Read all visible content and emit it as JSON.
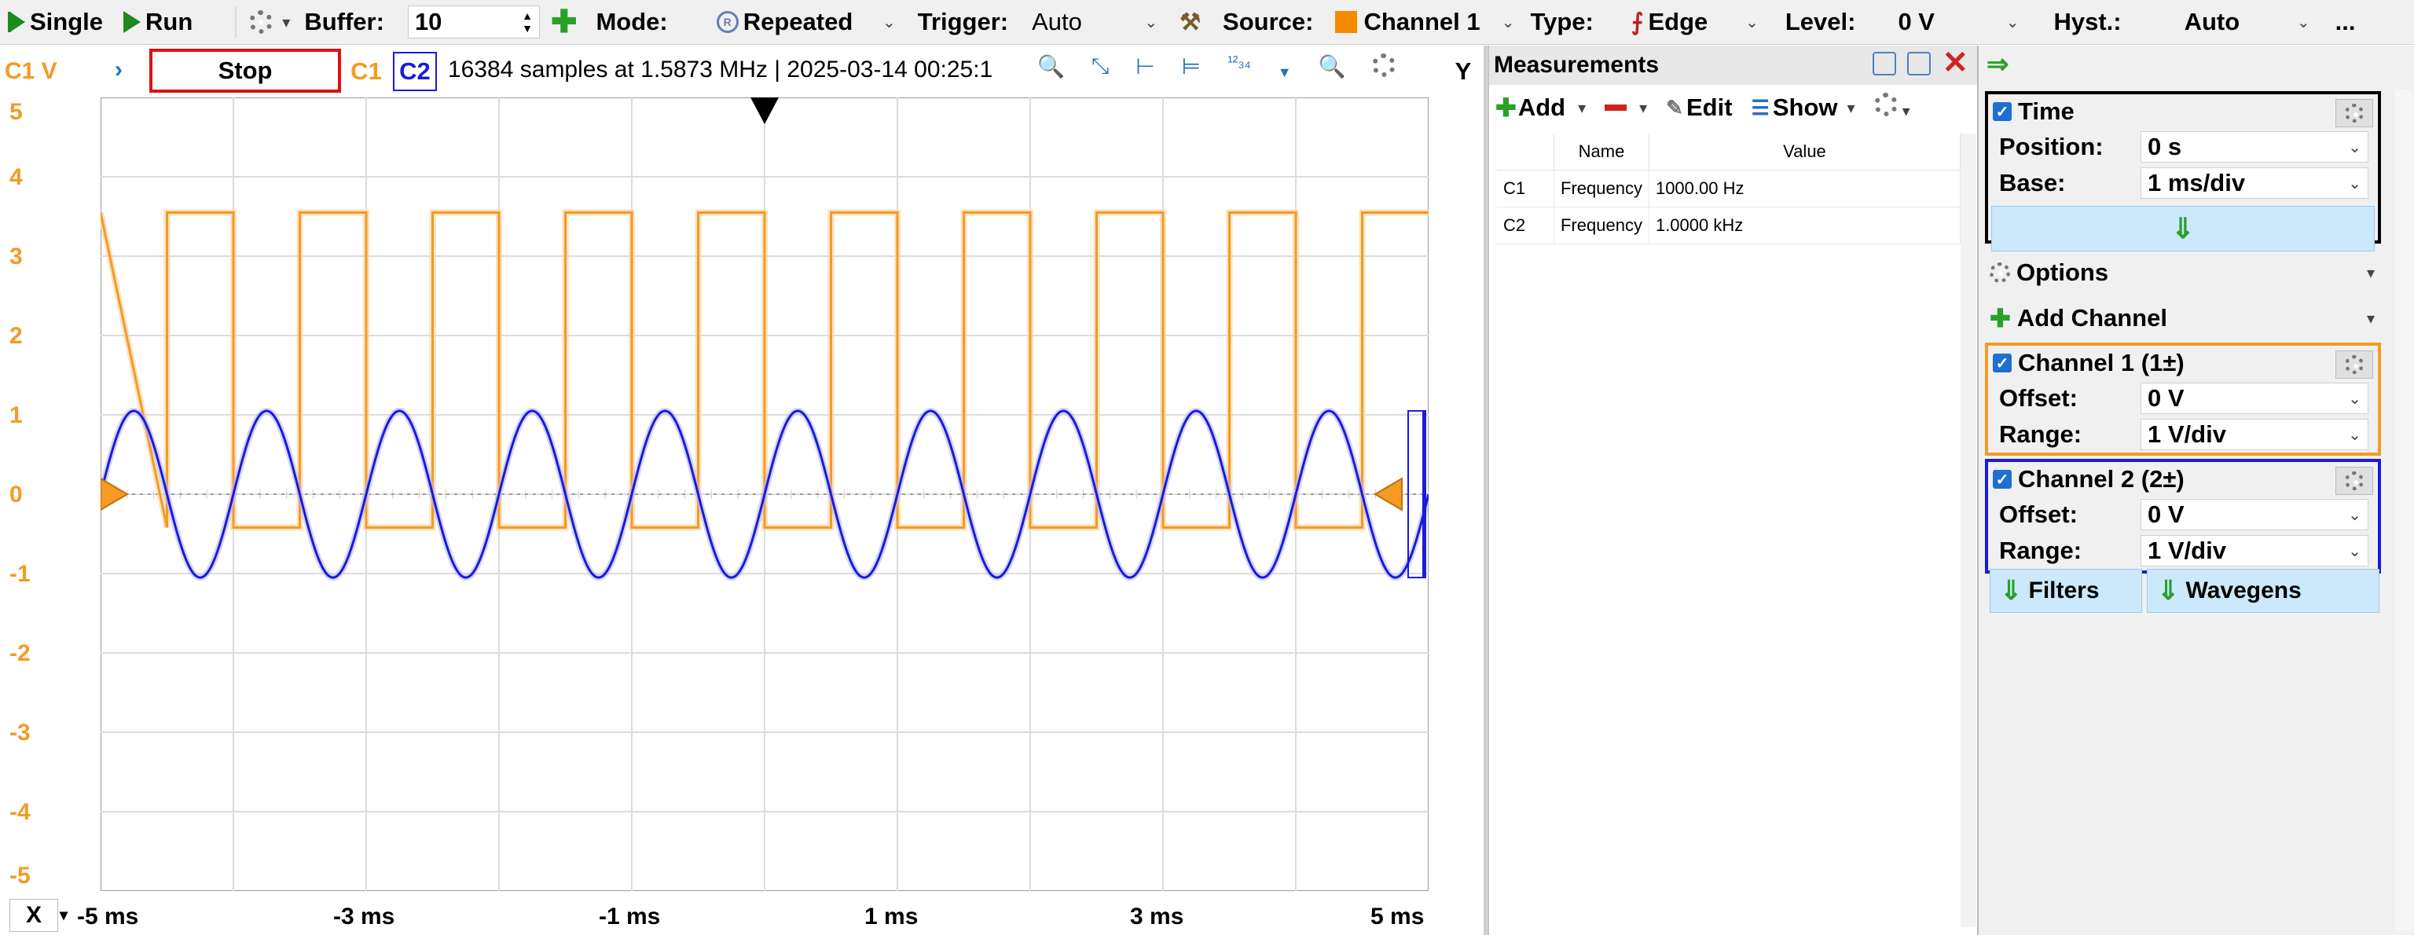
{
  "toolbar": {
    "single": "Single",
    "run": "Run",
    "buffer_label": "Buffer:",
    "buffer_value": "10",
    "mode_label": "Mode:",
    "mode_value": "Repeated",
    "trigger_label": "Trigger:",
    "trigger_value": "Auto",
    "source_label": "Source:",
    "source_value": "Channel 1",
    "type_label": "Type:",
    "type_value": "Edge",
    "level_label": "Level:",
    "level_value": "0 V",
    "hyst_label": "Hyst.:",
    "hyst_value": "Auto",
    "more": "..."
  },
  "scope": {
    "axis_title": "C1 V",
    "stop_label": "Stop",
    "c1": "C1",
    "c2": "C2",
    "status": "16384 samples at 1.5873 MHz  | 2025-03-14 00:25:1",
    "y_button": "Y",
    "y_ticks": [
      "5",
      "4",
      "3",
      "2",
      "1",
      "0",
      "-1",
      "-2",
      "-3",
      "-4",
      "-5"
    ],
    "x_button": "X",
    "x_ticks": [
      "-5 ms",
      "-3 ms",
      "-1 ms",
      "1 ms",
      "3 ms",
      "5 ms"
    ],
    "colors": {
      "c1": "#f59a23",
      "c2": "#1a1adb"
    }
  },
  "chart_data": {
    "type": "line",
    "x_unit": "ms",
    "xlim": [
      -5,
      5
    ],
    "ylim": [
      -5,
      5
    ],
    "grid": true,
    "trigger_level_v": 0,
    "series": [
      {
        "name": "C1",
        "shape": "square",
        "frequency_hz": 1000,
        "high_v": 3.55,
        "low_v": -0.42,
        "rising_edges_ms": [
          -4.5,
          -3.5,
          -2.5,
          -1.5,
          -0.5,
          0.5,
          1.5,
          2.5,
          3.5,
          4.5
        ]
      },
      {
        "name": "C2",
        "shape": "sine",
        "frequency_hz": 1000,
        "amplitude_v": 1.05,
        "offset_v": 0.0
      }
    ]
  },
  "measurements": {
    "title": "Measurements",
    "add": "Add",
    "edit": "Edit",
    "show": "Show",
    "headers": [
      "",
      "Name",
      "Value"
    ],
    "rows": [
      {
        "ch": "C1",
        "name": "Frequency",
        "value": "1000.00 Hz"
      },
      {
        "ch": "C2",
        "name": "Frequency",
        "value": "1.0000 kHz"
      }
    ]
  },
  "side": {
    "time_title": "Time",
    "position_label": "Position:",
    "position_value": "0 s",
    "base_label": "Base:",
    "base_value": "1 ms/div",
    "options": "Options",
    "add_channel": "Add Channel",
    "ch1_title": "Channel 1 (1±)",
    "ch1_offset_label": "Offset:",
    "ch1_offset_value": "0 V",
    "ch1_range_label": "Range:",
    "ch1_range_value": "1 V/div",
    "ch2_title": "Channel 2 (2±)",
    "ch2_offset_label": "Offset:",
    "ch2_offset_value": "0 V",
    "ch2_range_label": "Range:",
    "ch2_range_value": "1 V/div",
    "filters": "Filters",
    "wavegens": "Wavegens"
  }
}
